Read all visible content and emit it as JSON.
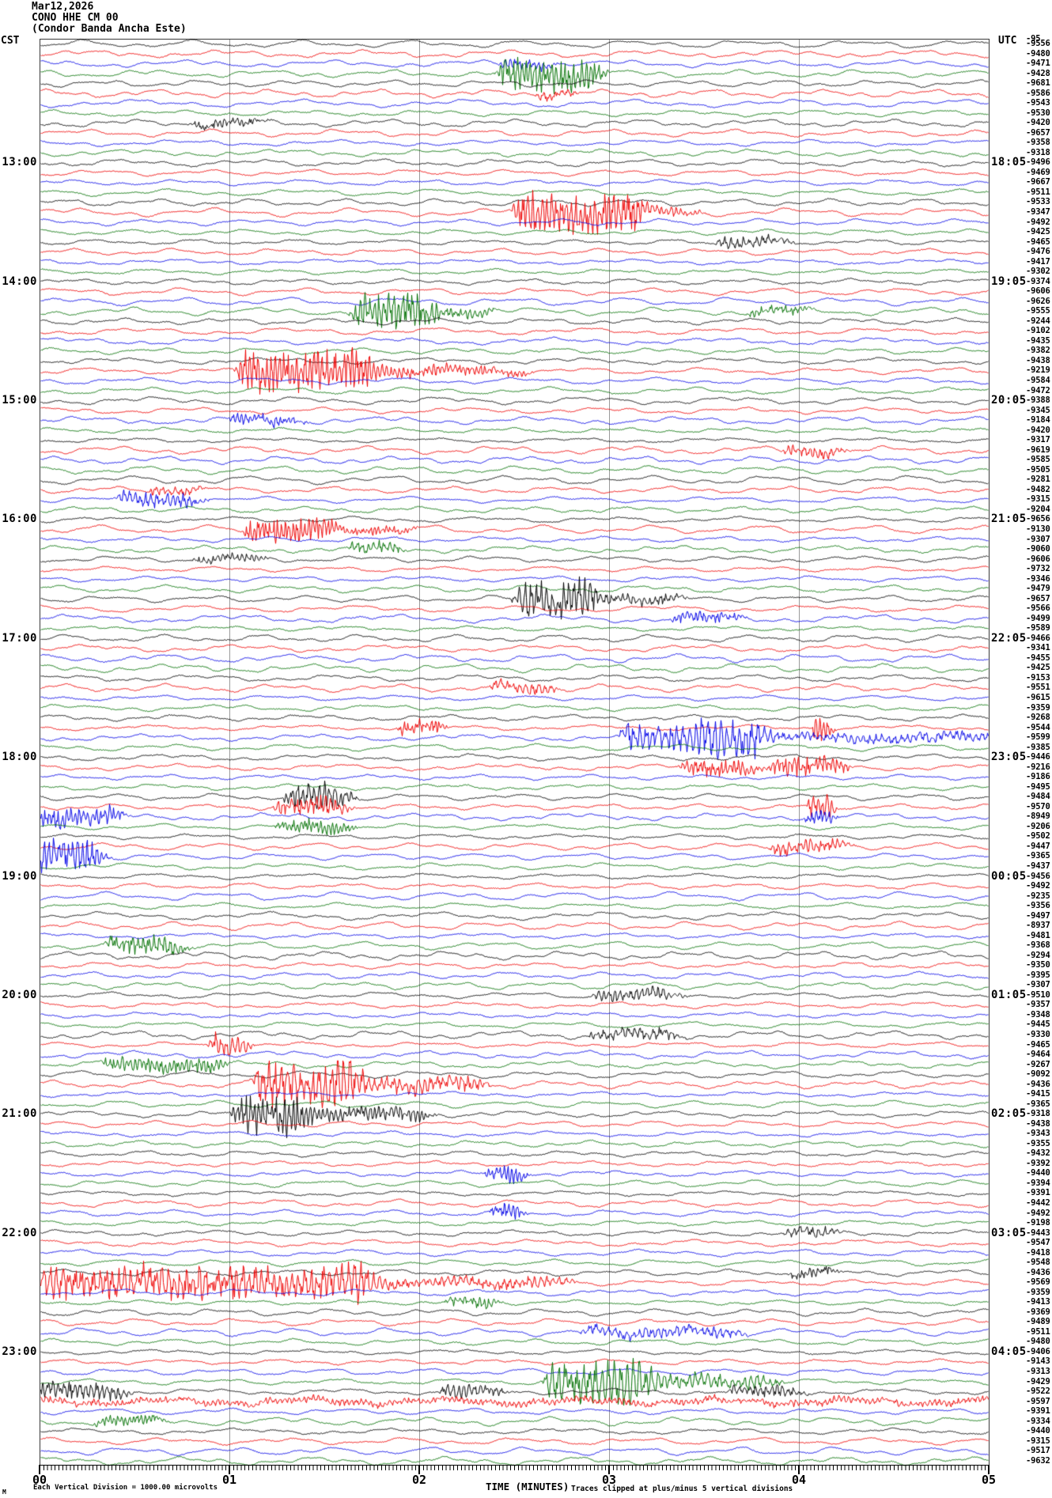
{
  "header": {
    "date": "Mar12,2026",
    "station": "CONO HHE CM 00",
    "station_name": "(Condor Banda Ancha Este)"
  },
  "axes": {
    "left_timezone": "CST",
    "right_timezone": "UTC",
    "cst_labels": [
      "13:00",
      "14:00",
      "15:00",
      "16:00",
      "17:00",
      "18:00",
      "19:00",
      "20:00",
      "21:00",
      "22:00",
      "23:00"
    ],
    "utc_labels": [
      "18:05",
      "19:05",
      "20:05",
      "21:05",
      "22:05",
      "23:05",
      "00:05",
      "01:05",
      "02:05",
      "03:05",
      "04:05"
    ],
    "label_start_row": 12,
    "label_row_step": 12
  },
  "footer": {
    "corner_mark": "M",
    "scale_note": "Each Vertical Division = 1000.00 microvolts",
    "xaxis_title": "TIME (MINUTES)",
    "clip_note": "Traces clipped at plus/minus 5 vertical divisions"
  },
  "first_value_overlap": "-95",
  "colors": {
    "trace_cycle": [
      "#000000",
      "#ee0000",
      "#0000e6",
      "#007000"
    ],
    "grid": "#9a9a9a",
    "border": "#3a3a3a"
  },
  "chart_data": {
    "type": "line",
    "subtype": "helicorder-seismogram",
    "title": "CONO HHE CM 00 (Condor Banda Ancha Este) Mar12,2026",
    "xlabel": "TIME (MINUTES)",
    "x_ticks": [
      "00",
      "01",
      "02",
      "03",
      "04",
      "05"
    ],
    "minutes_per_line": 5,
    "lines": 144,
    "line_color_cycle": [
      "black",
      "red",
      "blue",
      "green"
    ],
    "left_axis_timezone": "CST",
    "right_axis_timezone": "UTC",
    "scale_note": "Each Vertical Division = 1000.00 microvolts",
    "clip_note": "Traces clipped at plus/minus 5 vertical divisions",
    "trace_offsets_microvolts": [
      -9556,
      -9480,
      -9471,
      -9428,
      -9681,
      -9586,
      -9543,
      -9530,
      -9420,
      -9657,
      -9358,
      -9318,
      -9496,
      -9469,
      -9667,
      -9511,
      -9533,
      -9347,
      -9492,
      -9425,
      -9465,
      -9476,
      -9417,
      -9302,
      -9374,
      -9606,
      -9626,
      -9555,
      -9244,
      -9102,
      -9435,
      -9382,
      -9438,
      -9219,
      -9584,
      -9472,
      -9388,
      -9345,
      -9184,
      -9420,
      -9317,
      -9619,
      -9585,
      -9505,
      -9281,
      -9482,
      -9315,
      -9204,
      -9656,
      -9130,
      -9307,
      -9060,
      -9606,
      -9732,
      -9346,
      -9479,
      -9657,
      -9566,
      -9499,
      -9589,
      -9466,
      -9341,
      -9455,
      -9425,
      -9153,
      -9551,
      -9615,
      -9359,
      -9268,
      -9544,
      -9599,
      -9385,
      -9446,
      -9216,
      -9186,
      -9495,
      -9484,
      -9570,
      -8949,
      -9206,
      -9502,
      -9447,
      -9365,
      -9437,
      -9456,
      -9492,
      -9235,
      -9356,
      -9497,
      -8937,
      -9481,
      -9368,
      -9294,
      -9350,
      -9395,
      -9307,
      -9510,
      -9357,
      -9348,
      -9445,
      -9330,
      -9465,
      -9464,
      -9267,
      -9092,
      -9436,
      -9415,
      -9365,
      -9318,
      -9438,
      -9343,
      -9355,
      -9432,
      -9392,
      -9440,
      -9394,
      -9391,
      -9442,
      -9492,
      -9198,
      -9443,
      -9547,
      -9418,
      -9548,
      -9436,
      -9569,
      -9359,
      -9413,
      -9369,
      -9489,
      -9511,
      -9480,
      -9406,
      -9143,
      -9313,
      -9429,
      -9522,
      -9597,
      -9391,
      -9334,
      -9440,
      -9315,
      -9517,
      -9632
    ],
    "events_format": "[line_row, x_start_px, x_end_px, amplitude_px]",
    "events": [
      [
        2,
        640,
        680,
        6
      ],
      [
        3,
        640,
        735,
        22
      ],
      [
        5,
        685,
        715,
        6
      ],
      [
        8,
        250,
        310,
        5
      ],
      [
        17,
        660,
        790,
        26
      ],
      [
        17,
        790,
        860,
        6
      ],
      [
        20,
        915,
        975,
        7
      ],
      [
        27,
        455,
        525,
        24
      ],
      [
        27,
        525,
        600,
        6
      ],
      [
        27,
        955,
        1000,
        6
      ],
      [
        33,
        310,
        450,
        26
      ],
      [
        33,
        450,
        640,
        7
      ],
      [
        38,
        300,
        360,
        7
      ],
      [
        41,
        1000,
        1045,
        7
      ],
      [
        45,
        195,
        235,
        6
      ],
      [
        46,
        160,
        230,
        10
      ],
      [
        49,
        320,
        395,
        15
      ],
      [
        49,
        395,
        500,
        5
      ],
      [
        51,
        450,
        490,
        8
      ],
      [
        52,
        255,
        310,
        5
      ],
      [
        56,
        660,
        730,
        23
      ],
      [
        56,
        730,
        840,
        6
      ],
      [
        58,
        860,
        915,
        7
      ],
      [
        65,
        630,
        680,
        7
      ],
      [
        69,
        510,
        545,
        9
      ],
      [
        69,
        1030,
        1045,
        14
      ],
      [
        70,
        795,
        880,
        17
      ],
      [
        70,
        890,
        945,
        23
      ],
      [
        70,
        945,
        1240,
        6
      ],
      [
        73,
        870,
        935,
        11
      ],
      [
        73,
        985,
        1045,
        13
      ],
      [
        76,
        370,
        420,
        17
      ],
      [
        77,
        355,
        415,
        12
      ],
      [
        77,
        1025,
        1045,
        16
      ],
      [
        78,
        55,
        130,
        12
      ],
      [
        78,
        1020,
        1045,
        8
      ],
      [
        79,
        360,
        420,
        8
      ],
      [
        81,
        985,
        1045,
        9
      ],
      [
        82,
        50,
        105,
        21
      ],
      [
        91,
        145,
        210,
        12
      ],
      [
        96,
        760,
        835,
        7
      ],
      [
        100,
        755,
        835,
        7
      ],
      [
        101,
        270,
        300,
        15
      ],
      [
        103,
        140,
        260,
        9
      ],
      [
        105,
        330,
        430,
        27
      ],
      [
        105,
        430,
        590,
        10
      ],
      [
        108,
        305,
        370,
        25
      ],
      [
        108,
        370,
        520,
        9
      ],
      [
        114,
        620,
        650,
        10
      ],
      [
        118,
        625,
        650,
        9
      ],
      [
        120,
        1000,
        1042,
        6
      ],
      [
        124,
        1005,
        1040,
        6
      ],
      [
        125,
        50,
        450,
        21
      ],
      [
        125,
        450,
        700,
        7
      ],
      [
        127,
        570,
        610,
        8
      ],
      [
        130,
        745,
        915,
        7
      ],
      [
        135,
        700,
        800,
        27
      ],
      [
        135,
        800,
        960,
        9
      ],
      [
        136,
        50,
        135,
        11
      ],
      [
        136,
        565,
        615,
        8
      ],
      [
        136,
        930,
        990,
        8
      ],
      [
        137,
        50,
        1250,
        4
      ],
      [
        139,
        130,
        185,
        6
      ]
    ]
  }
}
